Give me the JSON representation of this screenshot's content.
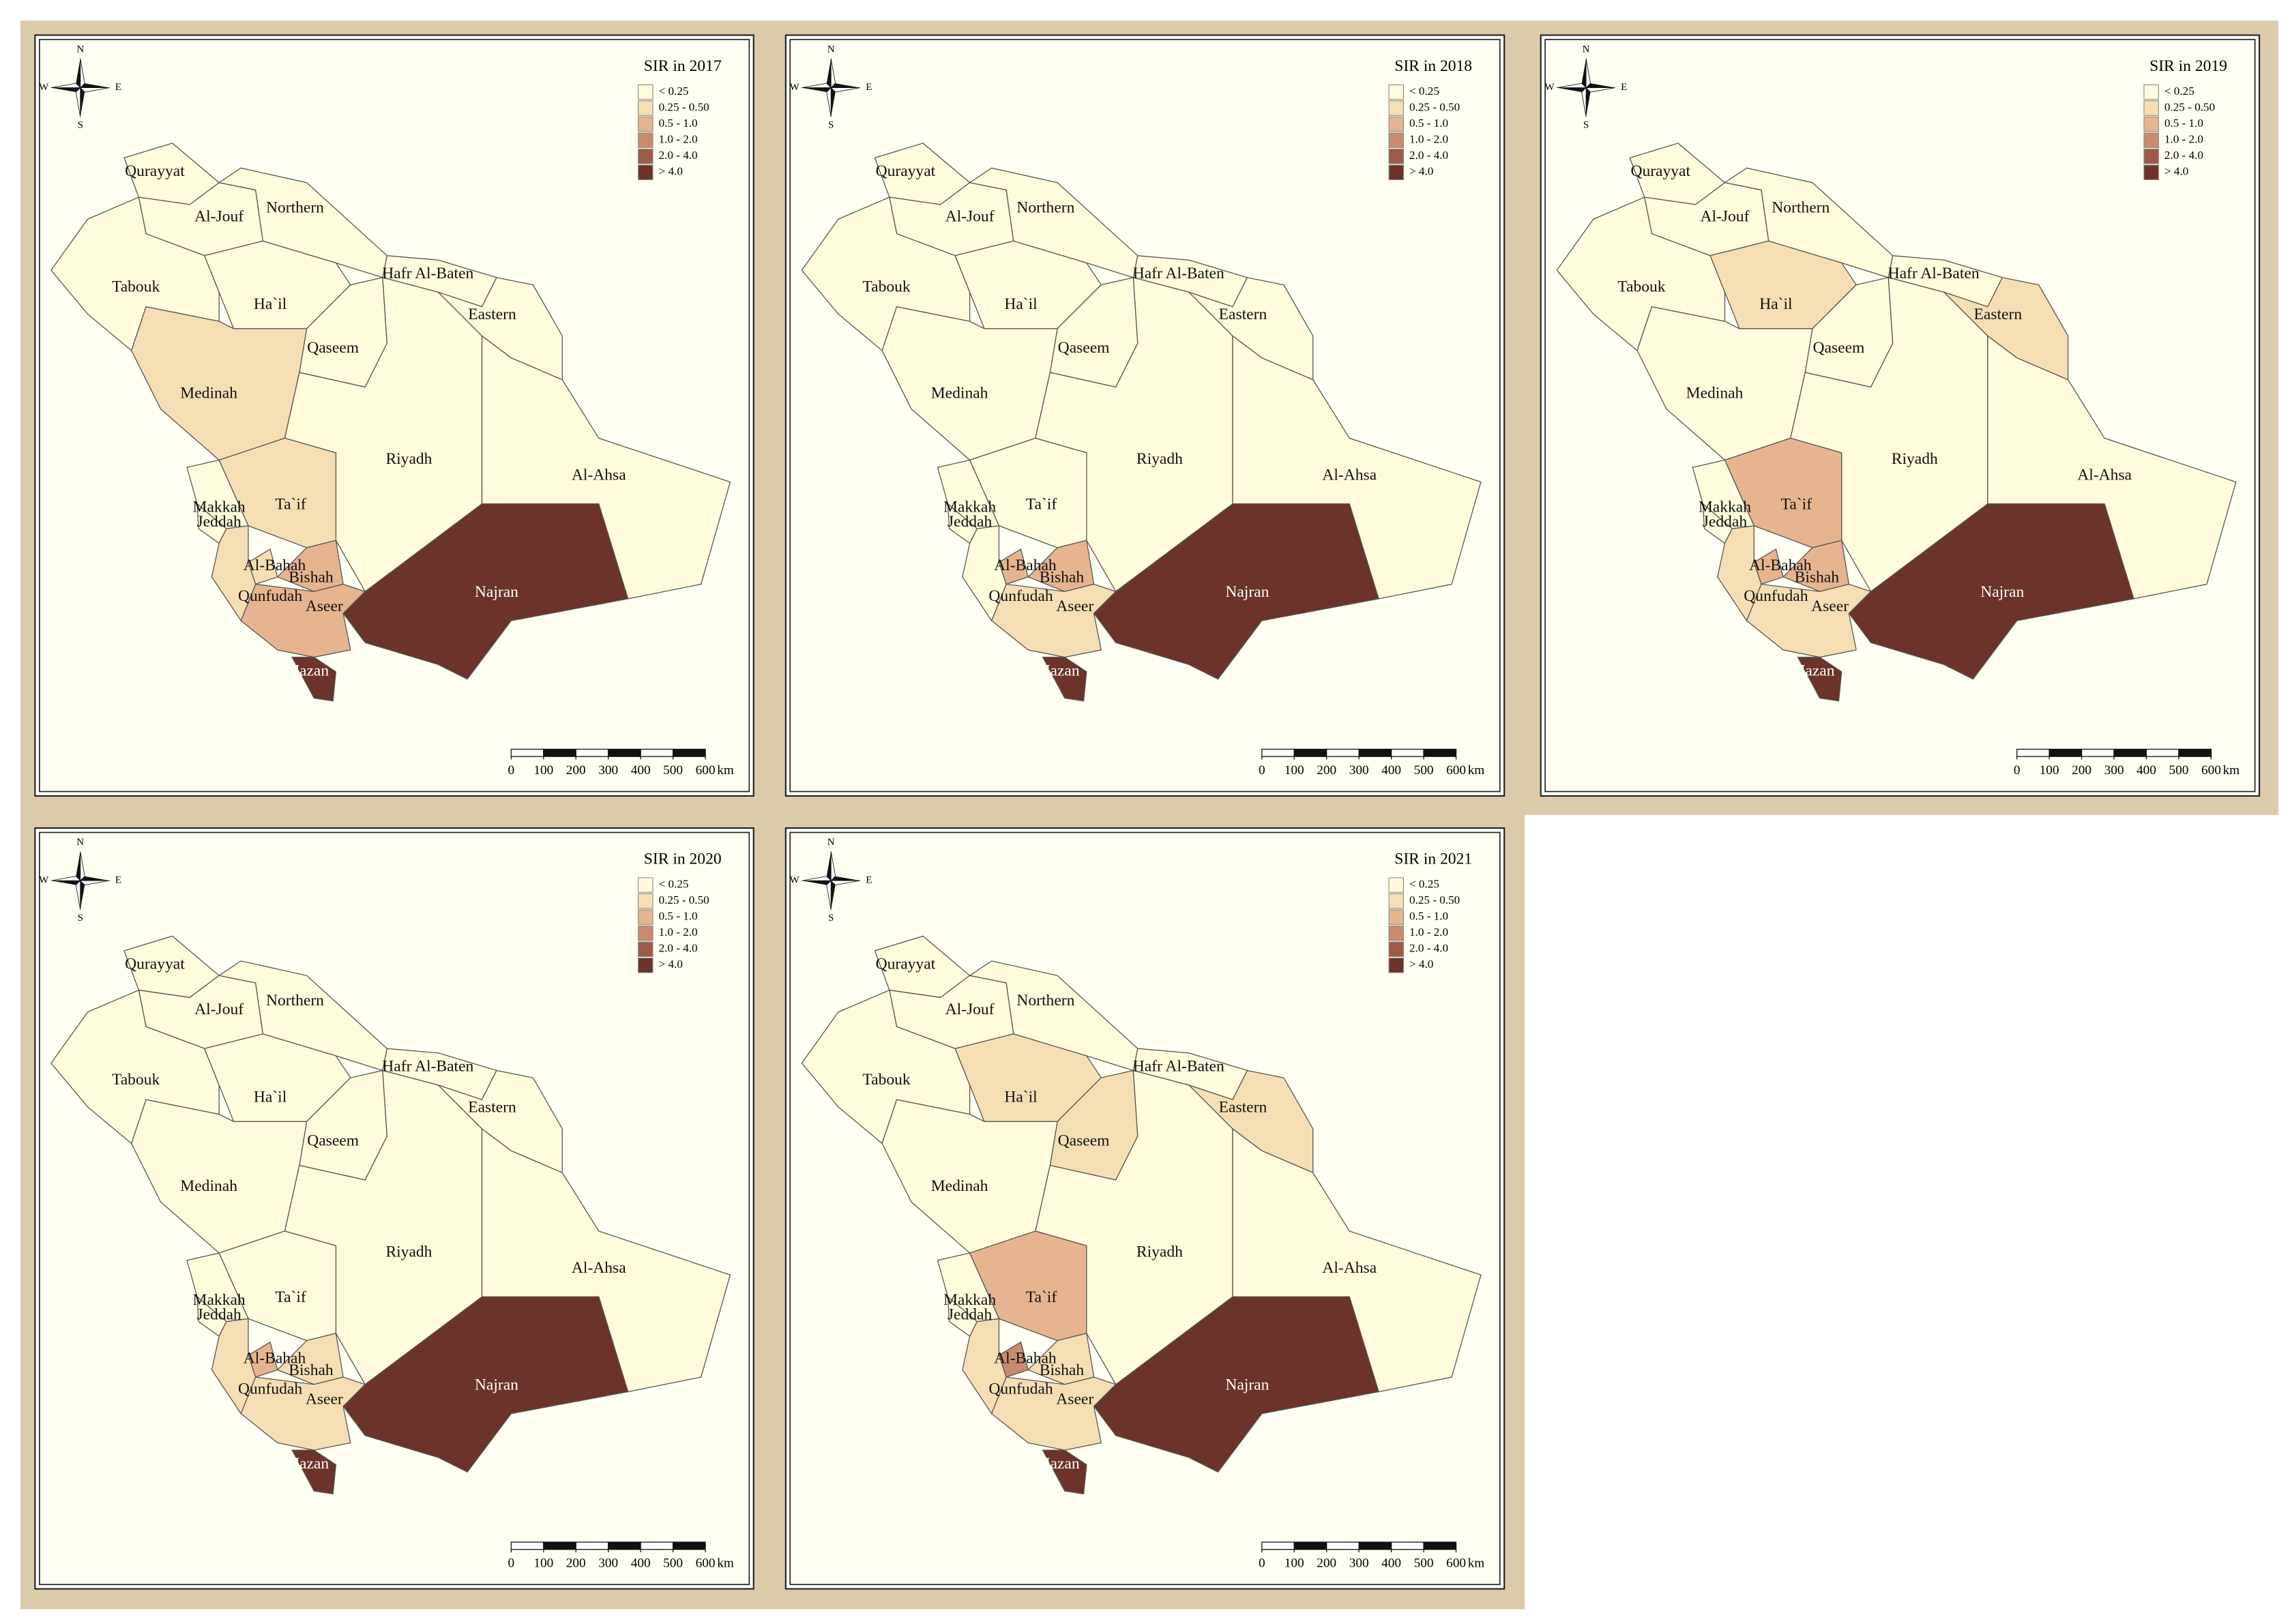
{
  "regions": [
    "Qurayyat",
    "Al-Jouf",
    "Northern",
    "Tabouk",
    "Ha`il",
    "Hafr Al-Baten",
    "Eastern",
    "Qaseem",
    "Medinah",
    "Riyadh",
    "Al-Ahsa",
    "Ta`if",
    "Makkah",
    "Jeddah",
    "Al-Bahah",
    "Bishah",
    "Qunfudah",
    "Aseer",
    "Najran",
    "Jazan"
  ],
  "legend": [
    {
      "label": "< 0.25",
      "color": "#fffbdc"
    },
    {
      "label": "0.25 - 0.50",
      "color": "#f5deb3"
    },
    {
      "label": "0.5 - 1.0",
      "color": "#e6b48f"
    },
    {
      "label": "1.0 - 2.0",
      "color": "#c98b6e"
    },
    {
      "label": "2.0 - 4.0",
      "color": "#9e5a48"
    },
    {
      "label": "> 4.0",
      "color": "#6b3329"
    }
  ],
  "compass": {
    "north": "N",
    "south": "S",
    "west": "W",
    "east": "E"
  },
  "scale_bar": {
    "ticks": [
      0,
      100,
      200,
      300,
      400,
      500,
      600
    ],
    "unit": "km"
  },
  "panels": [
    {
      "title": "SIR in 2017",
      "classes": [
        0,
        0,
        0,
        0,
        0,
        0,
        0,
        0,
        1,
        0,
        0,
        1,
        0,
        0,
        1,
        2,
        1,
        2,
        5,
        5
      ]
    },
    {
      "title": "SIR in 2018",
      "classes": [
        0,
        0,
        0,
        0,
        0,
        0,
        0,
        0,
        0,
        0,
        0,
        0,
        0,
        0,
        2,
        2,
        0,
        1,
        5,
        5
      ]
    },
    {
      "title": "SIR in 2019",
      "classes": [
        0,
        0,
        0,
        0,
        1,
        0,
        1,
        0,
        0,
        0,
        0,
        2,
        0,
        0,
        2,
        2,
        1,
        1,
        5,
        5
      ]
    },
    {
      "title": "SIR in 2020",
      "classes": [
        0,
        0,
        0,
        0,
        0,
        0,
        0,
        0,
        0,
        0,
        0,
        0,
        0,
        0,
        2,
        1,
        1,
        1,
        5,
        5
      ]
    },
    {
      "title": "SIR in 2021",
      "classes": [
        0,
        0,
        0,
        0,
        1,
        0,
        1,
        1,
        0,
        0,
        0,
        2,
        0,
        0,
        3,
        1,
        1,
        1,
        5,
        5
      ]
    }
  ]
}
